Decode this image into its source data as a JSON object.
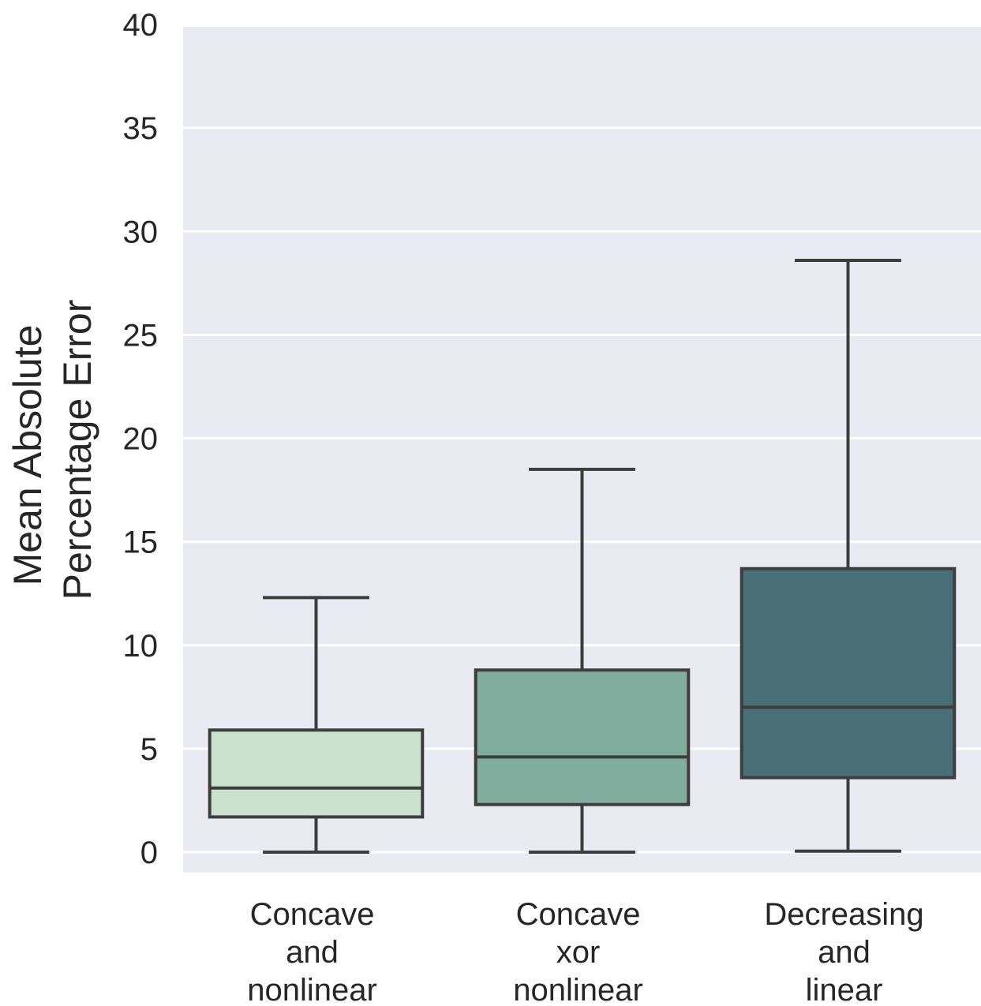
{
  "chart_data": {
    "type": "box",
    "xlabel": "",
    "ylabel_lines": [
      "Mean Absolute",
      "Percentage Error"
    ],
    "ylim": [
      -1,
      40
    ],
    "yticks": [
      0,
      5,
      10,
      15,
      20,
      25,
      30,
      35,
      40
    ],
    "grid": true,
    "legend": "none",
    "categories": [
      {
        "label_lines": [
          "Concave",
          "and",
          "nonlinear"
        ],
        "whisker_low": 0.0,
        "q1": 1.7,
        "median": 3.1,
        "q3": 5.9,
        "whisker_high": 12.3,
        "color": "#c9e1cd"
      },
      {
        "label_lines": [
          "Concave",
          "xor",
          "nonlinear"
        ],
        "whisker_low": 0.0,
        "q1": 2.3,
        "median": 4.6,
        "q3": 8.8,
        "whisker_high": 18.5,
        "color": "#80ad9e"
      },
      {
        "label_lines": [
          "Decreasing",
          "and",
          "linear"
        ],
        "whisker_low": 0.05,
        "q1": 3.6,
        "median": 7.0,
        "q3": 13.7,
        "whisker_high": 28.6,
        "color": "#4a7077"
      }
    ],
    "colors": {
      "plot_background": "#eaeaf2",
      "grid": "#ffffff",
      "box_edge": "#3d3d3d",
      "text": "#262626"
    }
  }
}
